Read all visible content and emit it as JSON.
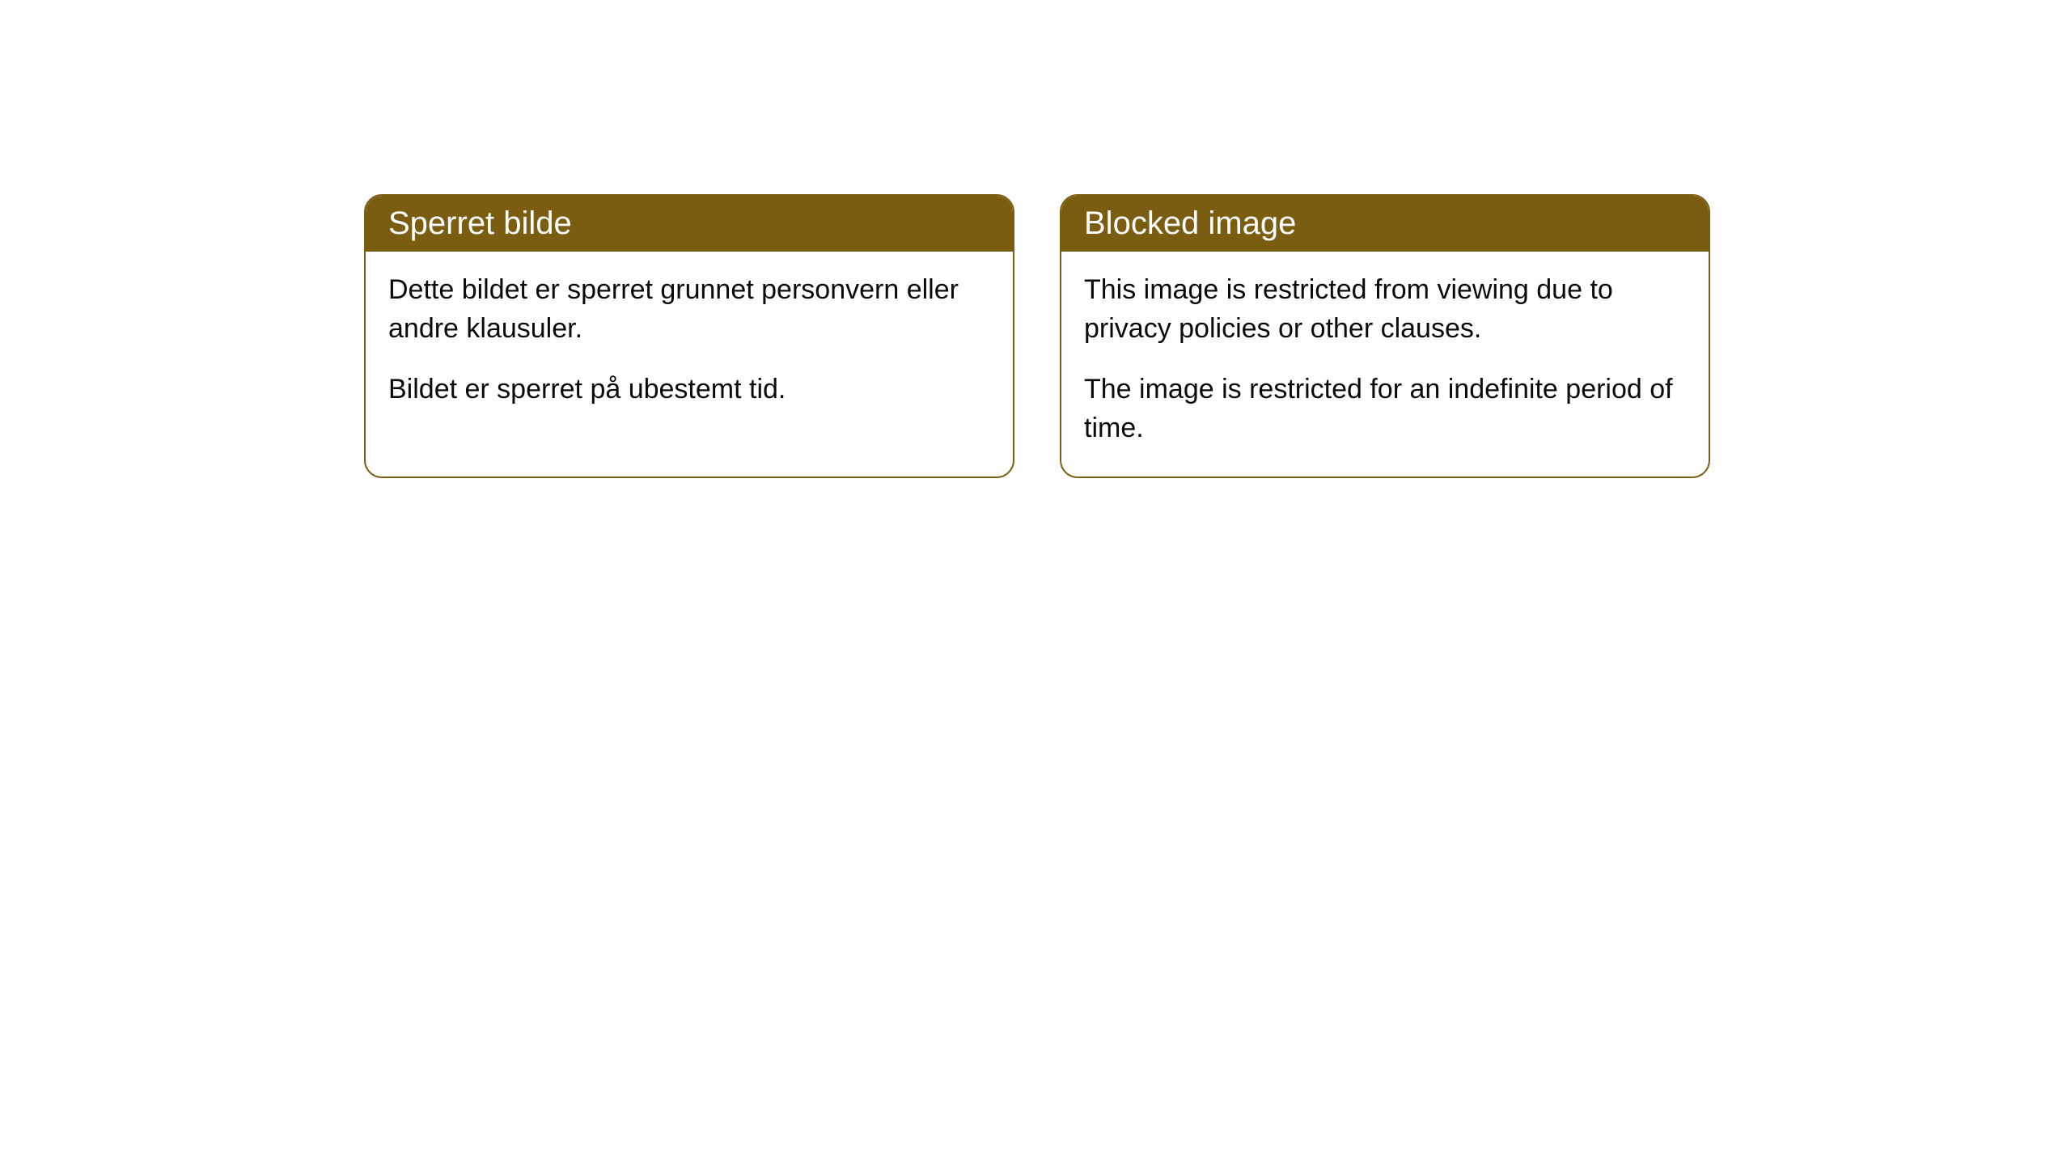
{
  "cards": [
    {
      "title": "Sperret bilde",
      "paragraph1": "Dette bildet er sperret grunnet personvern eller andre klausuler.",
      "paragraph2": "Bildet er sperret på ubestemt tid."
    },
    {
      "title": "Blocked image",
      "paragraph1": "This image is restricted from viewing due to privacy policies or other clauses.",
      "paragraph2": "The image is restricted for an indefinite period of time."
    }
  ],
  "styling": {
    "header_background": "#7a5d11",
    "header_text_color": "#ffffff",
    "border_color": "#7a5d11",
    "body_background": "#ffffff",
    "body_text_color": "#0a0a0a",
    "border_radius": 22,
    "header_fontsize": 40,
    "body_fontsize": 34
  }
}
